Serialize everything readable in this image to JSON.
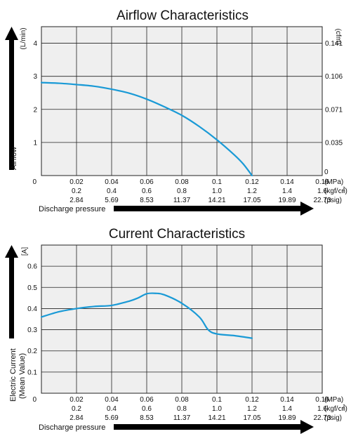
{
  "chart_data": [
    {
      "type": "line",
      "title": "Airflow Characteristics",
      "ylabel": "Airflow",
      "ylabel_unit": "(L/min)",
      "y2label_unit": "(cfm)",
      "xlabel": "Discharge pressure",
      "xlim": [
        0,
        0.16
      ],
      "ylim": [
        0,
        4.5
      ],
      "grid": true,
      "yticks": [
        "1",
        "2",
        "3",
        "4"
      ],
      "y2ticks": [
        "0.035",
        "0.071",
        "0.106",
        "0.141"
      ],
      "origin_left_label": "0",
      "origin_right_label": "0",
      "x_rows": [
        {
          "unit": "(MPa)",
          "ticks": [
            "0.02",
            "0.04",
            "0.06",
            "0.08",
            "0.1",
            "0.12",
            "0.14",
            "0.16"
          ]
        },
        {
          "unit": "(kgf/㎠)",
          "ticks": [
            "0.2",
            "0.4",
            "0.6",
            "0.8",
            "1.0",
            "1.2",
            "1.4",
            "1.6"
          ]
        },
        {
          "unit": "(psig)",
          "ticks": [
            "2.84",
            "5.69",
            "8.53",
            "11.37",
            "14.21",
            "17.05",
            "19.89",
            "22.73"
          ]
        }
      ],
      "series": [
        {
          "color": "#1a9ad6",
          "x": [
            0,
            0.01,
            0.02,
            0.03,
            0.04,
            0.05,
            0.06,
            0.07,
            0.08,
            0.09,
            0.1,
            0.11,
            0.115,
            0.12
          ],
          "y": [
            2.81,
            2.79,
            2.75,
            2.7,
            2.61,
            2.49,
            2.31,
            2.08,
            1.82,
            1.48,
            1.08,
            0.62,
            0.35,
            0.0
          ]
        }
      ]
    },
    {
      "type": "line",
      "title": "Current Characteristics",
      "ylabel": "Electric Current",
      "ylabel2": "(Mean Value)",
      "ylabel_unit": "[A]",
      "xlabel": "Discharge pressure",
      "xlim": [
        0,
        0.16
      ],
      "ylim": [
        0,
        0.7
      ],
      "grid": true,
      "yticks": [
        "0.1",
        "0.2",
        "0.3",
        "0.4",
        "0.5",
        "0.6"
      ],
      "origin_left_label": "0",
      "x_rows": [
        {
          "unit": "(MPa)",
          "ticks": [
            "0.02",
            "0.04",
            "0.06",
            "0.08",
            "0.1",
            "0.12",
            "0.14",
            "0.16"
          ]
        },
        {
          "unit": "(kgf/㎠)",
          "ticks": [
            "0.2",
            "0.4",
            "0.6",
            "0.8",
            "1.0",
            "1.2",
            "1.4",
            "1.6"
          ]
        },
        {
          "unit": "(psig)",
          "ticks": [
            "2.84",
            "5.69",
            "8.53",
            "11.37",
            "14.21",
            "17.05",
            "19.89",
            "22.73"
          ]
        }
      ],
      "series": [
        {
          "color": "#1a9ad6",
          "x": [
            0,
            0.01,
            0.02,
            0.03,
            0.04,
            0.05,
            0.055,
            0.06,
            0.065,
            0.07,
            0.08,
            0.09,
            0.095,
            0.1,
            0.11,
            0.12
          ],
          "y": [
            0.36,
            0.385,
            0.4,
            0.41,
            0.415,
            0.435,
            0.45,
            0.47,
            0.472,
            0.465,
            0.425,
            0.36,
            0.3,
            0.28,
            0.272,
            0.26
          ]
        }
      ]
    }
  ]
}
